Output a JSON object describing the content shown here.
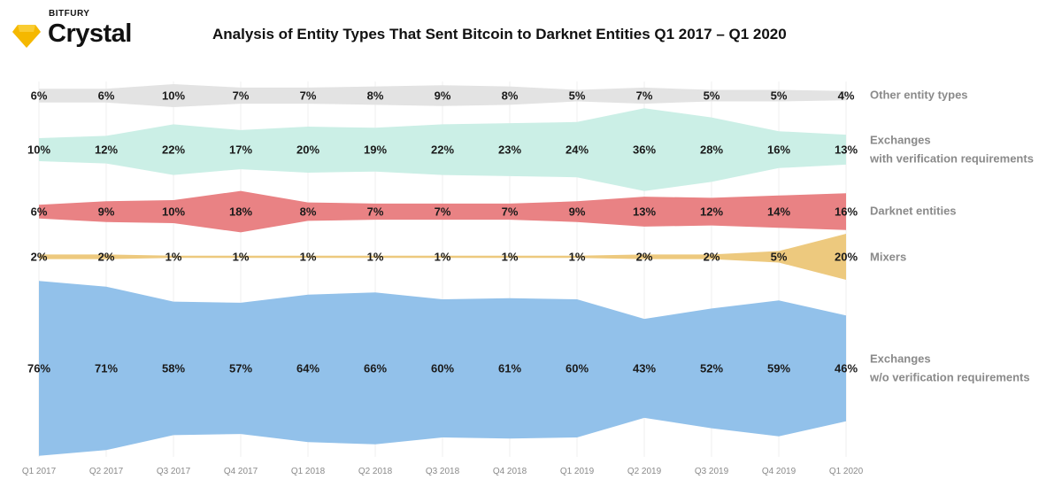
{
  "brand": {
    "top": "BITFURY",
    "name": "Crystal",
    "logo_color": "#F5B800"
  },
  "title": "Analysis of Entity Types That Sent Bitcoin to Darknet Entities Q1 2017 – Q1 2020",
  "chart_data": {
    "type": "area",
    "layout_note": "stream-style chart: each series drawn as a band centered on its own baseline, thickness proportional to share",
    "categories": [
      "Q1 2017",
      "Q2 2017",
      "Q3 2017",
      "Q4 2017",
      "Q1 2018",
      "Q2 2018",
      "Q3 2018",
      "Q4 2018",
      "Q1 2019",
      "Q2 2019",
      "Q3 2019",
      "Q4 2019",
      "Q1 2020"
    ],
    "unit": "%",
    "series": [
      {
        "name": "Other entity types",
        "color": "#E3E3E3",
        "values": [
          6,
          6,
          10,
          7,
          7,
          8,
          9,
          8,
          5,
          7,
          5,
          5,
          4
        ],
        "labels": [
          "6%",
          "6%",
          "10%",
          "7%",
          "7%",
          "8%",
          "9%",
          "8%",
          "5%",
          "7%",
          "5%",
          "5%",
          "4%"
        ]
      },
      {
        "name": "Exchanges with verification requirements",
        "color": "#CBEFE6",
        "legend_lines": [
          "Exchanges",
          "with verification requirements"
        ],
        "values": [
          10,
          12,
          22,
          17,
          20,
          19,
          22,
          23,
          24,
          36,
          28,
          16,
          13
        ],
        "labels": [
          "10%",
          "12%",
          "22%",
          "17%",
          "20%",
          "19%",
          "22%",
          "23%",
          "24%",
          "36%",
          "28%",
          "16%",
          "13%"
        ]
      },
      {
        "name": "Darknet entities",
        "color": "#E98284",
        "values": [
          6,
          9,
          10,
          18,
          8,
          7,
          7,
          7,
          9,
          13,
          12,
          14,
          16
        ],
        "labels": [
          "6%",
          "9%",
          "10%",
          "18%",
          "8%",
          "7%",
          "7%",
          "7%",
          "9%",
          "13%",
          "12%",
          "14%",
          "16%"
        ]
      },
      {
        "name": "Mixers",
        "color": "#EDC97E",
        "values": [
          2,
          2,
          1,
          1,
          1,
          1,
          1,
          1,
          1,
          2,
          2,
          5,
          20
        ],
        "labels": [
          "2%",
          "2%",
          "1%",
          "1%",
          "1%",
          "1%",
          "1%",
          "1%",
          "1%",
          "2%",
          "2%",
          "5%",
          "20%"
        ]
      },
      {
        "name": "Exchanges w/o verification requirements",
        "color": "#92C1EA",
        "legend_lines": [
          "Exchanges",
          "w/o verification requirements"
        ],
        "values": [
          76,
          71,
          58,
          57,
          64,
          66,
          60,
          61,
          60,
          43,
          52,
          59,
          46
        ],
        "labels": [
          "76%",
          "71%",
          "58%",
          "57%",
          "64%",
          "66%",
          "60%",
          "61%",
          "60%",
          "43%",
          "52%",
          "59%",
          "46%"
        ]
      }
    ],
    "grid": true,
    "legend_position": "right"
  }
}
